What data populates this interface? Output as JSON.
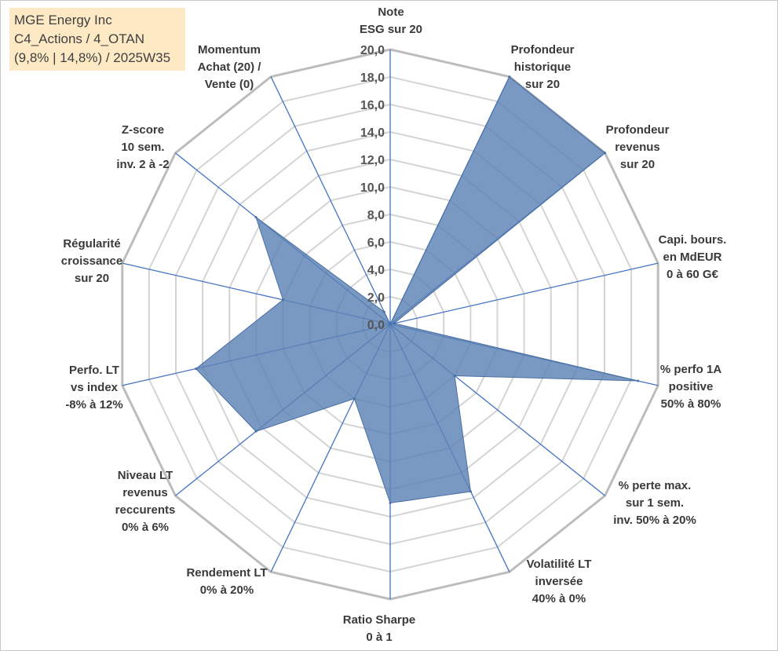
{
  "header": {
    "line1": "MGE Energy Inc",
    "line2": "C4_Actions / 4_OTAN",
    "line3": "(9,8% | 14,8%) / 2025W35"
  },
  "chart_data": {
    "type": "radar",
    "rlim": [
      0,
      20
    ],
    "tick_step": 2,
    "tick_labels": [
      "0,0",
      "2,0",
      "4,0",
      "6,0",
      "8,0",
      "10,0",
      "12,0",
      "14,0",
      "16,0",
      "18,0",
      "20,0"
    ],
    "grid": true,
    "fill_color": "#5b83b5",
    "axes": [
      {
        "label": [
          "Note",
          "ESG sur 20"
        ],
        "value": 0
      },
      {
        "label": [
          "Profondeur",
          "historique",
          "sur 20"
        ],
        "value": 20
      },
      {
        "label": [
          "Profondeur",
          "revenus",
          "sur 20"
        ],
        "value": 20
      },
      {
        "label": [
          "Capi. bours.",
          "en MdEUR",
          "0 à 60 G€"
        ],
        "value": 0.3
      },
      {
        "label": [
          "% perfo 1A",
          "positive",
          "50% à 80%"
        ],
        "value": 18.5
      },
      {
        "label": [
          "% perte max.",
          "sur 1 sem.",
          "inv. 50% à 20%"
        ],
        "value": 6
      },
      {
        "label": [
          "Volatilité LT",
          "inversée",
          "40% à 0%"
        ],
        "value": 13.5
      },
      {
        "label": [
          "Ratio Sharpe",
          "0 à 1"
        ],
        "value": 13
      },
      {
        "label": [
          "Rendement LT",
          "0% à 20%"
        ],
        "value": 6
      },
      {
        "label": [
          "Niveau LT",
          "revenus",
          "reccurents",
          "0% à 6%"
        ],
        "value": 12.5
      },
      {
        "label": [
          "Perfo. LT",
          "vs index",
          "-8% à 12%"
        ],
        "value": 14.5
      },
      {
        "label": [
          "Régularité",
          "croissance",
          "sur 20"
        ],
        "value": 8
      },
      {
        "label": [
          "Z-score",
          "10 sem.",
          "inv. 2 à -2"
        ],
        "value": 12.5
      },
      {
        "label": [
          "Momentum",
          "Achat (20) /",
          "Vente (0)"
        ],
        "value": 1
      }
    ]
  }
}
